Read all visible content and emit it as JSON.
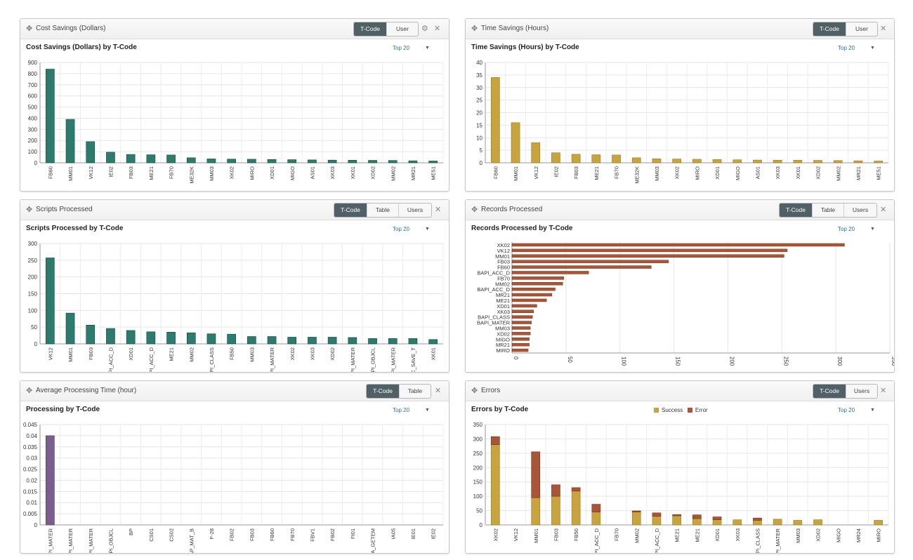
{
  "colors": {
    "teal": "#2e7b6e",
    "gold": "#c8a440",
    "rust": "#a85538",
    "purple": "#7a5f8e",
    "accent": "#4f6066"
  },
  "panels": [
    {
      "header_title": "Cost Savings (Dollars)",
      "buttons": [
        "T-Code",
        "User"
      ],
      "active": 0,
      "has_gear": true,
      "chart_title": "Cost Savings (Dollars) by T-Code",
      "top_label": "Top 20"
    },
    {
      "header_title": "Time Savings (Hours)",
      "buttons": [
        "T-Code",
        "User"
      ],
      "active": 0,
      "has_gear": false,
      "chart_title": "Time Savings (Hours) by T-Code",
      "top_label": "Top 20"
    },
    {
      "header_title": "Scripts Processed",
      "buttons": [
        "T-Code",
        "Table",
        "Users"
      ],
      "active": 0,
      "has_gear": false,
      "chart_title": "Scripts Processed by T-Code",
      "top_label": "Top 20"
    },
    {
      "header_title": "Records Processed",
      "buttons": [
        "T-Code",
        "Table",
        "Users"
      ],
      "active": 0,
      "has_gear": false,
      "chart_title": "Records Processed by T-Code",
      "top_label": "Top 20"
    },
    {
      "header_title": "Average Processing Time (hour)",
      "buttons": [
        "T-Code",
        "Table"
      ],
      "active": 0,
      "has_gear": false,
      "chart_title": "Processing by T-Code",
      "top_label": "Top 20"
    },
    {
      "header_title": "Errors",
      "buttons": [
        "T-Code",
        "Users"
      ],
      "active": 0,
      "has_gear": false,
      "chart_title": "Errors by T-Code",
      "top_label": "Top 20",
      "legend": [
        {
          "label": "Success",
          "color": "#c8a440"
        },
        {
          "label": "Error",
          "color": "#a85538"
        }
      ]
    }
  ],
  "chart_data": [
    {
      "type": "bar",
      "title": "Cost Savings (Dollars) by T-Code",
      "color": "#2e7b6e",
      "categories": [
        "FB60",
        "MM01",
        "VK12",
        "IE02",
        "FB03",
        "ME21",
        "FB70",
        "ME32K",
        "MM03",
        "XK02",
        "MIRO",
        "XD01",
        "MIGO",
        "AS01",
        "XK03",
        "XK01",
        "XD02",
        "MM02",
        "MR21",
        "ME51"
      ],
      "values": [
        840,
        390,
        190,
        95,
        75,
        72,
        70,
        45,
        35,
        33,
        32,
        30,
        28,
        26,
        24,
        23,
        22,
        21,
        18,
        16
      ],
      "ylim": [
        0,
        900
      ],
      "yticks": [
        0,
        100,
        200,
        300,
        400,
        500,
        600,
        700,
        800,
        900
      ]
    },
    {
      "type": "bar",
      "title": "Time Savings (Hours) by T-Code",
      "color": "#c8a440",
      "categories": [
        "FB60",
        "MM01",
        "VK12",
        "IE02",
        "FB03",
        "ME21",
        "FB70",
        "ME32K",
        "MM03",
        "XK02",
        "MIRO",
        "XD01",
        "MIGO",
        "AS01",
        "XK03",
        "XK01",
        "XD02",
        "MM02",
        "MR21",
        "ME51"
      ],
      "values": [
        34,
        16,
        8,
        4,
        3.4,
        3.2,
        3.1,
        2,
        1.6,
        1.5,
        1.4,
        1.3,
        1.2,
        1.1,
        1.05,
        1,
        0.95,
        0.9,
        0.8,
        0.7
      ],
      "ylim": [
        0,
        40
      ],
      "yticks": [
        0,
        5,
        10,
        15,
        20,
        25,
        30,
        35,
        40
      ]
    },
    {
      "type": "bar",
      "title": "Scripts Processed by T-Code",
      "color": "#2e7b6e",
      "categories": [
        "VK12",
        "MM01",
        "FB03",
        "BAPI_ACC_D",
        "XD01",
        "BAPI_ACC_D",
        "ME21",
        "MM02",
        "BAPI_CLASS",
        "FB50",
        "MM03",
        "BAPI_MATER",
        "XK02",
        "XK03",
        "XD02",
        "BAPI_MATER",
        "BAPI_OBJCL",
        "BAPI_MATER",
        "RFC_SAVE_T",
        "XK01"
      ],
      "values": [
        257,
        92,
        56,
        46,
        40,
        36,
        35,
        33,
        30,
        29,
        22,
        22,
        20,
        20,
        20,
        19,
        16,
        16,
        16,
        13
      ],
      "ylim": [
        0,
        300
      ],
      "yticks": [
        0,
        50,
        100,
        150,
        200,
        250,
        300
      ]
    },
    {
      "type": "bar",
      "orientation": "horizontal",
      "title": "Records Processed by T-Code",
      "color": "#a85538",
      "categories": [
        "XK02",
        "VK12",
        "MM01",
        "FB03",
        "FB60",
        "BAPI_ACC_D",
        "FB70",
        "MM02",
        "BAPI_ACC_D",
        "MR21",
        "ME21",
        "XD01",
        "XK03",
        "BAPI_CLASS",
        "BAPI_MATER",
        "MM03",
        "XD02",
        "MIGO",
        "MR21",
        "MIRO"
      ],
      "values": [
        308,
        255,
        252,
        145,
        129,
        71,
        48,
        47,
        40,
        37,
        32,
        23,
        20,
        19,
        18,
        17,
        17,
        16,
        16,
        15
      ],
      "xlim": [
        0,
        350
      ],
      "xticks": [
        0,
        50,
        100,
        150,
        200,
        250,
        300,
        350
      ]
    },
    {
      "type": "bar",
      "title": "Processing by T-Code",
      "color": "#7a5f8e",
      "categories": [
        "BAPI_MATER",
        "BAPI_MATER",
        "BAPI_MATER",
        "BAPI_OBJCL",
        "BP",
        "CS01",
        "CS02",
        "SAP_MAT_B",
        "F-28",
        "FB02",
        "FB03",
        "FB60",
        "FB70",
        "FBV1",
        "FB02",
        "FI01",
        "RCA_GETEM",
        "IA05",
        "IE01",
        "IE02"
      ],
      "values": [
        0.04,
        0,
        0,
        0,
        0,
        0,
        0,
        0,
        0,
        0,
        0,
        0,
        0,
        0,
        0,
        0,
        0,
        0,
        0,
        0
      ],
      "ylim": [
        0,
        0.045
      ],
      "yticks": [
        "0",
        "0.005",
        "0.01",
        "0.015",
        "0.02",
        "0.025",
        "0.03",
        "0.035",
        "0.04",
        "0.045"
      ]
    },
    {
      "type": "bar",
      "stacked": true,
      "title": "Errors by T-Code",
      "categories": [
        "XK02",
        "VK12",
        "MM01",
        "FB03",
        "FB50",
        "BAPI_ACC_D",
        "FB70",
        "MM02",
        "BAPI_ACC_D",
        "ME21",
        "ME21",
        "XD01",
        "XK03",
        "BAPI_CLASS",
        "BAPI_MATER",
        "MM03",
        "XD02",
        "MIGO",
        "MR24",
        "MIRO"
      ],
      "series": [
        {
          "name": "Success",
          "color": "#c8a440",
          "values": [
            280,
            0,
            95,
            100,
            118,
            45,
            0,
            45,
            30,
            32,
            22,
            18,
            18,
            16,
            20,
            16,
            18,
            0,
            0,
            16
          ]
        },
        {
          "name": "Error",
          "color": "#a85538",
          "values": [
            28,
            0,
            160,
            40,
            12,
            27,
            0,
            4,
            12,
            4,
            13,
            10,
            0,
            8,
            0,
            0,
            0,
            0,
            0,
            0
          ]
        }
      ],
      "ylim": [
        0,
        350
      ],
      "yticks": [
        0,
        50,
        100,
        150,
        200,
        250,
        300,
        350
      ]
    }
  ]
}
